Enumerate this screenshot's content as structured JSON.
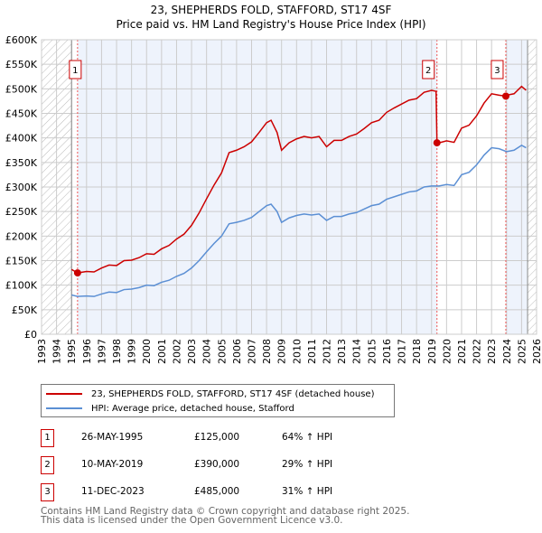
{
  "title": "23, SHEPHERDS FOLD, STAFFORD, ST17 4SF",
  "subtitle": "Price paid vs. HM Land Registry's House Price Index (HPI)",
  "chart_data": {
    "type": "line",
    "title": "23, SHEPHERDS FOLD, STAFFORD, ST17 4SF",
    "subtitle": "Price paid vs. HM Land Registry's House Price Index (HPI)",
    "xlim": [
      1993,
      2026
    ],
    "ylim": [
      0,
      600000
    ],
    "grid": true,
    "legend_placement": "below",
    "y_ticks": [
      0,
      50000,
      100000,
      150000,
      200000,
      250000,
      300000,
      350000,
      400000,
      450000,
      500000,
      550000,
      600000
    ],
    "y_tick_labels": [
      "£0",
      "£50K",
      "£100K",
      "£150K",
      "£200K",
      "£250K",
      "£300K",
      "£350K",
      "£400K",
      "£450K",
      "£500K",
      "£550K",
      "£600K"
    ],
    "x_tick_labels": [
      "1993",
      "1994",
      "1995",
      "1996",
      "1997",
      "1998",
      "1999",
      "2000",
      "2001",
      "2002",
      "2003",
      "2004",
      "2005",
      "2006",
      "2007",
      "2008",
      "2009",
      "2010",
      "2011",
      "2012",
      "2013",
      "2014",
      "2015",
      "2016",
      "2017",
      "2018",
      "2019",
      "2020",
      "2021",
      "2022",
      "2023",
      "2024",
      "2025",
      "2026"
    ],
    "series": [
      {
        "name": "23, SHEPHERDS FOLD, STAFFORD, ST17 4SF (detached house)",
        "color": "#cc0000",
        "points": [
          [
            1995.0,
            132000
          ],
          [
            1995.4,
            125000
          ],
          [
            1996,
            128000
          ],
          [
            1996.5,
            127000
          ],
          [
            1997,
            135000
          ],
          [
            1997.5,
            141000
          ],
          [
            1998,
            140000
          ],
          [
            1998.5,
            150000
          ],
          [
            1999,
            151000
          ],
          [
            1999.5,
            156000
          ],
          [
            2000,
            164000
          ],
          [
            2000.5,
            163000
          ],
          [
            2001,
            174000
          ],
          [
            2001.5,
            181000
          ],
          [
            2002,
            194000
          ],
          [
            2002.5,
            204000
          ],
          [
            2003,
            222000
          ],
          [
            2003.5,
            247000
          ],
          [
            2004,
            276000
          ],
          [
            2004.5,
            304000
          ],
          [
            2005,
            329000
          ],
          [
            2005.5,
            370000
          ],
          [
            2006,
            375000
          ],
          [
            2006.5,
            382000
          ],
          [
            2007,
            392000
          ],
          [
            2007.5,
            411000
          ],
          [
            2008,
            431000
          ],
          [
            2008.3,
            436000
          ],
          [
            2008.7,
            411000
          ],
          [
            2009,
            375000
          ],
          [
            2009.5,
            390000
          ],
          [
            2010,
            398000
          ],
          [
            2010.5,
            403000
          ],
          [
            2011,
            400000
          ],
          [
            2011.5,
            403000
          ],
          [
            2012,
            382000
          ],
          [
            2012.5,
            395000
          ],
          [
            2013,
            395000
          ],
          [
            2013.5,
            403000
          ],
          [
            2014,
            408000
          ],
          [
            2014.5,
            419000
          ],
          [
            2015,
            431000
          ],
          [
            2015.5,
            436000
          ],
          [
            2016,
            452000
          ],
          [
            2016.5,
            461000
          ],
          [
            2017,
            469000
          ],
          [
            2017.5,
            477000
          ],
          [
            2018,
            480000
          ],
          [
            2018.5,
            493000
          ],
          [
            2019,
            497000
          ],
          [
            2019.3,
            495000
          ],
          [
            2019.36,
            390000
          ],
          [
            2019.5,
            390000
          ],
          [
            2020,
            394000
          ],
          [
            2020.5,
            391000
          ],
          [
            2021,
            420000
          ],
          [
            2021.5,
            426000
          ],
          [
            2022,
            445000
          ],
          [
            2022.5,
            471000
          ],
          [
            2023,
            490000
          ],
          [
            2023.5,
            487000
          ],
          [
            2023.95,
            485000
          ],
          [
            2024,
            487000
          ],
          [
            2024.5,
            490000
          ],
          [
            2025,
            505000
          ],
          [
            2025.3,
            497000
          ]
        ]
      },
      {
        "name": "HPI: Average price, detached house, Stafford",
        "color": "#5b8fd4",
        "points": [
          [
            1995.0,
            80000
          ],
          [
            1995.4,
            77000
          ],
          [
            1996,
            78000
          ],
          [
            1996.5,
            77000
          ],
          [
            1997,
            82000
          ],
          [
            1997.5,
            86000
          ],
          [
            1998,
            85000
          ],
          [
            1998.5,
            91000
          ],
          [
            1999,
            92000
          ],
          [
            1999.5,
            95000
          ],
          [
            2000,
            100000
          ],
          [
            2000.5,
            99000
          ],
          [
            2001,
            106000
          ],
          [
            2001.5,
            110000
          ],
          [
            2002,
            118000
          ],
          [
            2002.5,
            124000
          ],
          [
            2003,
            135000
          ],
          [
            2003.5,
            150000
          ],
          [
            2004,
            168000
          ],
          [
            2004.5,
            185000
          ],
          [
            2005,
            200000
          ],
          [
            2005.5,
            225000
          ],
          [
            2006,
            228000
          ],
          [
            2006.5,
            232000
          ],
          [
            2007,
            238000
          ],
          [
            2007.5,
            250000
          ],
          [
            2008,
            262000
          ],
          [
            2008.3,
            265000
          ],
          [
            2008.7,
            250000
          ],
          [
            2009,
            228000
          ],
          [
            2009.5,
            237000
          ],
          [
            2010,
            242000
          ],
          [
            2010.5,
            245000
          ],
          [
            2011,
            243000
          ],
          [
            2011.5,
            245000
          ],
          [
            2012,
            232000
          ],
          [
            2012.5,
            240000
          ],
          [
            2013,
            240000
          ],
          [
            2013.5,
            245000
          ],
          [
            2014,
            248000
          ],
          [
            2014.5,
            255000
          ],
          [
            2015,
            262000
          ],
          [
            2015.5,
            265000
          ],
          [
            2016,
            275000
          ],
          [
            2016.5,
            280000
          ],
          [
            2017,
            285000
          ],
          [
            2017.5,
            290000
          ],
          [
            2018,
            292000
          ],
          [
            2018.5,
            300000
          ],
          [
            2019,
            302000
          ],
          [
            2019.5,
            302000
          ],
          [
            2020,
            305000
          ],
          [
            2020.5,
            303000
          ],
          [
            2021,
            325000
          ],
          [
            2021.5,
            330000
          ],
          [
            2022,
            345000
          ],
          [
            2022.5,
            365000
          ],
          [
            2023,
            380000
          ],
          [
            2023.5,
            378000
          ],
          [
            2024,
            372000
          ],
          [
            2024.5,
            375000
          ],
          [
            2025,
            385000
          ],
          [
            2025.3,
            380000
          ]
        ]
      }
    ],
    "sales": [
      {
        "label": "1",
        "x": 1995.4,
        "y": 125000
      },
      {
        "label": "2",
        "x": 2019.36,
        "y": 390000
      },
      {
        "label": "3",
        "x": 2023.95,
        "y": 485000
      }
    ],
    "hatched_ranges": [
      [
        1993,
        1995
      ],
      [
        2025.4,
        2026
      ]
    ],
    "shaded_ranges": [
      [
        1995.4,
        2019.36
      ],
      [
        2023.95,
        2025.4
      ]
    ]
  },
  "legend": {
    "items": [
      {
        "label": "23, SHEPHERDS FOLD, STAFFORD, ST17 4SF (detached house)",
        "color": "#cc0000"
      },
      {
        "label": "HPI: Average price, detached house, Stafford",
        "color": "#5b8fd4"
      }
    ]
  },
  "table": [
    {
      "num": "1",
      "date": "26-MAY-1995",
      "price": "£125,000",
      "hpi": "64% ↑ HPI"
    },
    {
      "num": "2",
      "date": "10-MAY-2019",
      "price": "£390,000",
      "hpi": "29% ↑ HPI"
    },
    {
      "num": "3",
      "date": "11-DEC-2023",
      "price": "£485,000",
      "hpi": "31% ↑ HPI"
    }
  ],
  "footer": {
    "line1": "Contains HM Land Registry data © Crown copyright and database right 2025.",
    "line2": "This data is licensed under the Open Government Licence v3.0."
  }
}
